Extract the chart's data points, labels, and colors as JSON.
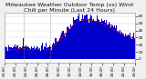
{
  "title": "Milwaukee Weather Outdoor Temp (vs) Wind Chill per Minute (Last 24 Hours)",
  "bg_color": "#f0f0f0",
  "plot_bg": "#ffffff",
  "bar_color": "#0000cc",
  "line_color": "#dd0000",
  "vline_color": "#888888",
  "ylim": [
    -5,
    65
  ],
  "yticks": [
    0,
    10,
    20,
    30,
    40,
    50,
    60
  ],
  "n_points": 1440,
  "vline_positions": [
    0.15,
    0.35
  ],
  "title_fontsize": 4.5,
  "tick_fontsize": 3.0
}
